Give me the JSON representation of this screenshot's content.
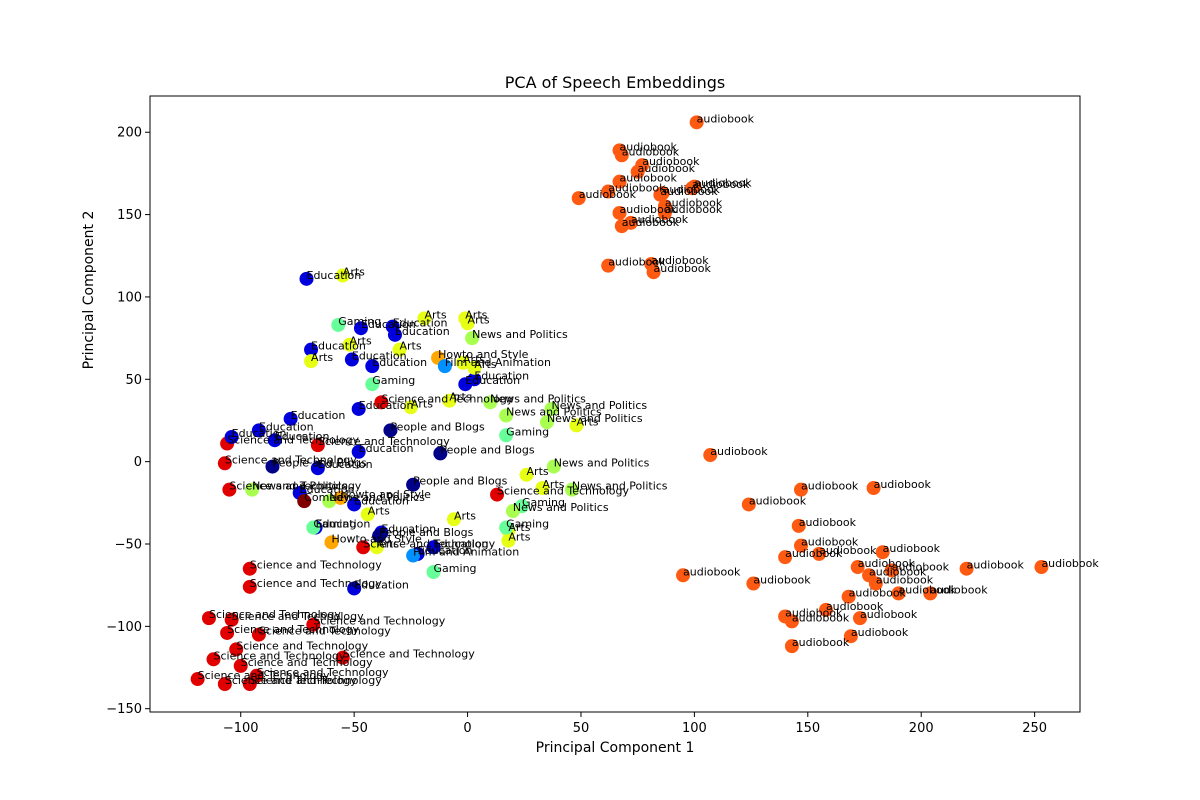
{
  "chart_data": {
    "type": "scatter",
    "title": "PCA of Speech Embeddings",
    "xlabel": "Principal Component 1",
    "ylabel": "Principal Component 2",
    "xlim": [
      -140,
      270
    ],
    "ylim": [
      -152,
      222
    ],
    "xticks": [
      -100,
      -50,
      0,
      50,
      100,
      150,
      200,
      250
    ],
    "yticks": [
      -150,
      -100,
      -50,
      0,
      50,
      100,
      150,
      200
    ],
    "grid": false,
    "legend": "none",
    "category_colors": {
      "audiobook": "#ff5a12",
      "Science and Technology": "#e00000",
      "Education": "#0000dd",
      "Arts": "#e6ff14",
      "Gaming": "#66ff99",
      "News and Politics": "#a8ff50",
      "People and Blogs": "#000088",
      "Howto and Style": "#ffa600",
      "Comedy": "#800000",
      "Film and Animation": "#0090ff"
    },
    "series": [
      {
        "name": "audiobook",
        "points": [
          {
            "x": 101,
            "y": 206,
            "label": "audiobook"
          },
          {
            "x": 67,
            "y": 189,
            "label": "audiobook"
          },
          {
            "x": 68,
            "y": 186,
            "label": "audiobook"
          },
          {
            "x": 77,
            "y": 180,
            "label": "audiobook"
          },
          {
            "x": 75,
            "y": 176,
            "label": "audiobook"
          },
          {
            "x": 67,
            "y": 170,
            "label": "audiobook"
          },
          {
            "x": 62,
            "y": 164,
            "label": "audiobook"
          },
          {
            "x": 99,
            "y": 166,
            "label": "audiobook"
          },
          {
            "x": 100,
            "y": 167,
            "label": "audiobook"
          },
          {
            "x": 85,
            "y": 162,
            "label": "audiobook"
          },
          {
            "x": 86,
            "y": 163,
            "label": "audiobook"
          },
          {
            "x": 49,
            "y": 160,
            "label": "audiobook"
          },
          {
            "x": 87,
            "y": 155,
            "label": "audiobook"
          },
          {
            "x": 67,
            "y": 151,
            "label": "audiobook"
          },
          {
            "x": 87,
            "y": 151,
            "label": "audiobook"
          },
          {
            "x": 72,
            "y": 145,
            "label": "audiobook"
          },
          {
            "x": 68,
            "y": 143,
            "label": "audiobook"
          },
          {
            "x": 81,
            "y": 120,
            "label": "audiobook"
          },
          {
            "x": 62,
            "y": 119,
            "label": "audiobook"
          },
          {
            "x": 82,
            "y": 115,
            "label": "audiobook"
          },
          {
            "x": 107,
            "y": 4,
            "label": "audiobook"
          },
          {
            "x": 147,
            "y": -17,
            "label": "audiobook"
          },
          {
            "x": 179,
            "y": -16,
            "label": "audiobook"
          },
          {
            "x": 124,
            "y": -26,
            "label": "audiobook"
          },
          {
            "x": 146,
            "y": -39,
            "label": "audiobook"
          },
          {
            "x": 147,
            "y": -51,
            "label": "audiobook"
          },
          {
            "x": 155,
            "y": -56,
            "label": "audiobook"
          },
          {
            "x": 140,
            "y": -58,
            "label": "audiobook"
          },
          {
            "x": 172,
            "y": -64,
            "label": "audiobook"
          },
          {
            "x": 183,
            "y": -55,
            "label": "audiobook"
          },
          {
            "x": 220,
            "y": -65,
            "label": "audiobook"
          },
          {
            "x": 253,
            "y": -64,
            "label": "audiobook"
          },
          {
            "x": 95,
            "y": -69,
            "label": "audiobook"
          },
          {
            "x": 126,
            "y": -74,
            "label": "audiobook"
          },
          {
            "x": 177,
            "y": -69,
            "label": "audiobook"
          },
          {
            "x": 187,
            "y": -66,
            "label": "audiobook"
          },
          {
            "x": 180,
            "y": -74,
            "label": "audiobook"
          },
          {
            "x": 168,
            "y": -82,
            "label": "audiobook"
          },
          {
            "x": 190,
            "y": -80,
            "label": "audiobook"
          },
          {
            "x": 204,
            "y": -80,
            "label": "audiobook"
          },
          {
            "x": 158,
            "y": -90,
            "label": "audiobook"
          },
          {
            "x": 173,
            "y": -95,
            "label": "audiobook"
          },
          {
            "x": 140,
            "y": -94,
            "label": "audiobook"
          },
          {
            "x": 143,
            "y": -97,
            "label": "audiobook"
          },
          {
            "x": 169,
            "y": -106,
            "label": "audiobook"
          },
          {
            "x": 143,
            "y": -112,
            "label": "audiobook"
          }
        ]
      },
      {
        "name": "Science and Technology",
        "points": [
          {
            "x": -106,
            "y": 11,
            "label": "Science and Technology"
          },
          {
            "x": -107,
            "y": -1,
            "label": "Science and Technology"
          },
          {
            "x": -105,
            "y": -17,
            "label": "Science and Technology"
          },
          {
            "x": -96,
            "y": -65,
            "label": "Science and Technology"
          },
          {
            "x": -96,
            "y": -76,
            "label": "Science and Technology"
          },
          {
            "x": -114,
            "y": -95,
            "label": "Science and Technology"
          },
          {
            "x": -104,
            "y": -96,
            "label": "Science and Technology"
          },
          {
            "x": -106,
            "y": -104,
            "label": "Science and Technology"
          },
          {
            "x": -92,
            "y": -105,
            "label": "Science and Technology"
          },
          {
            "x": -68,
            "y": -99,
            "label": "Science and Technology"
          },
          {
            "x": -102,
            "y": -114,
            "label": "Science and Technology"
          },
          {
            "x": -112,
            "y": -120,
            "label": "Science and Technology"
          },
          {
            "x": -100,
            "y": -124,
            "label": "Science and Technology"
          },
          {
            "x": -55,
            "y": -119,
            "label": "Science and Technology"
          },
          {
            "x": -93,
            "y": -130,
            "label": "Science and Technology"
          },
          {
            "x": -119,
            "y": -132,
            "label": "Science and Technology"
          },
          {
            "x": -107,
            "y": -135,
            "label": "Science and Technology"
          },
          {
            "x": -96,
            "y": -135,
            "label": "Science and Technology"
          },
          {
            "x": -38,
            "y": 36,
            "label": "Science and Technology"
          },
          {
            "x": -66,
            "y": 10,
            "label": "Science and Technology"
          },
          {
            "x": -46,
            "y": -52,
            "label": "Science and Technology"
          },
          {
            "x": 13,
            "y": -20,
            "label": "Science and Technology"
          }
        ]
      },
      {
        "name": "Education",
        "points": [
          {
            "x": -71,
            "y": 111,
            "label": "Education"
          },
          {
            "x": -47,
            "y": 81,
            "label": "Education"
          },
          {
            "x": -33,
            "y": 82,
            "label": "Education"
          },
          {
            "x": -32,
            "y": 77,
            "label": "Education"
          },
          {
            "x": -69,
            "y": 68,
            "label": "Education"
          },
          {
            "x": -51,
            "y": 62,
            "label": "Education"
          },
          {
            "x": -42,
            "y": 58,
            "label": "Education"
          },
          {
            "x": -1,
            "y": 47,
            "label": "Education"
          },
          {
            "x": 3,
            "y": 50,
            "label": "Education"
          },
          {
            "x": -48,
            "y": 32,
            "label": "Education"
          },
          {
            "x": -78,
            "y": 26,
            "label": "Education"
          },
          {
            "x": -104,
            "y": 15,
            "label": "Education"
          },
          {
            "x": -92,
            "y": 19,
            "label": "Education"
          },
          {
            "x": -85,
            "y": 13,
            "label": "Education"
          },
          {
            "x": -66,
            "y": -4,
            "label": "Education"
          },
          {
            "x": -74,
            "y": -19,
            "label": "Education"
          },
          {
            "x": -48,
            "y": 6,
            "label": "Education"
          },
          {
            "x": -67,
            "y": -40,
            "label": "Education"
          },
          {
            "x": -50,
            "y": -26,
            "label": "Education"
          },
          {
            "x": -38,
            "y": -43,
            "label": "Education"
          },
          {
            "x": -15,
            "y": -52,
            "label": "Education"
          },
          {
            "x": -22,
            "y": -56,
            "label": "Education"
          },
          {
            "x": -50,
            "y": -77,
            "label": "Education"
          }
        ]
      },
      {
        "name": "Arts",
        "points": [
          {
            "x": -55,
            "y": 113,
            "label": "Arts"
          },
          {
            "x": -19,
            "y": 87,
            "label": "Arts"
          },
          {
            "x": -1,
            "y": 87,
            "label": "Arts"
          },
          {
            "x": 0,
            "y": 84,
            "label": "Arts"
          },
          {
            "x": -52,
            "y": 71,
            "label": "Arts"
          },
          {
            "x": -69,
            "y": 61,
            "label": "Arts"
          },
          {
            "x": -30,
            "y": 68,
            "label": "Arts"
          },
          {
            "x": 3,
            "y": 57,
            "label": "Arts"
          },
          {
            "x": -2,
            "y": 60,
            "label": "Arts"
          },
          {
            "x": -8,
            "y": 37,
            "label": "Arts"
          },
          {
            "x": 48,
            "y": 22,
            "label": "Arts"
          },
          {
            "x": 26,
            "y": -8,
            "label": "Arts"
          },
          {
            "x": 33,
            "y": -16,
            "label": "Arts"
          },
          {
            "x": -44,
            "y": -32,
            "label": "Arts"
          },
          {
            "x": 18,
            "y": -42,
            "label": "Arts"
          },
          {
            "x": 18,
            "y": -48,
            "label": "Arts"
          },
          {
            "x": -6,
            "y": -35,
            "label": "Arts"
          },
          {
            "x": -40,
            "y": -52,
            "label": "Arts"
          },
          {
            "x": -25,
            "y": 33,
            "label": "Arts"
          }
        ]
      },
      {
        "name": "Gaming",
        "points": [
          {
            "x": -57,
            "y": 83,
            "label": "Gaming"
          },
          {
            "x": -42,
            "y": 47,
            "label": "Gaming"
          },
          {
            "x": 17,
            "y": 16,
            "label": "Gaming"
          },
          {
            "x": 24,
            "y": -27,
            "label": "Gaming"
          },
          {
            "x": 17,
            "y": -40,
            "label": "Gaming"
          },
          {
            "x": -15,
            "y": -67,
            "label": "Gaming"
          },
          {
            "x": -68,
            "y": -40,
            "label": "Gaming"
          }
        ]
      },
      {
        "name": "News and Politics",
        "points": [
          {
            "x": 2,
            "y": 75,
            "label": "News and Politics"
          },
          {
            "x": 10,
            "y": 36,
            "label": "News and Politics"
          },
          {
            "x": 37,
            "y": 32,
            "label": "News and Politics"
          },
          {
            "x": 17,
            "y": 28,
            "label": "News and Politics"
          },
          {
            "x": 35,
            "y": 24,
            "label": "News and Politics"
          },
          {
            "x": 38,
            "y": -3,
            "label": "News and Politics"
          },
          {
            "x": 46,
            "y": -17,
            "label": "News and Politics"
          },
          {
            "x": 20,
            "y": -30,
            "label": "News and Politics"
          },
          {
            "x": -95,
            "y": -17,
            "label": "News and Politics"
          },
          {
            "x": -61,
            "y": -24,
            "label": "News and Politics"
          }
        ]
      },
      {
        "name": "People and Blogs",
        "points": [
          {
            "x": -86,
            "y": -3,
            "label": "People and Blogs"
          },
          {
            "x": -39,
            "y": -45,
            "label": "People and Blogs"
          },
          {
            "x": -24,
            "y": -14,
            "label": "People and Blogs"
          },
          {
            "x": -34,
            "y": 19,
            "label": "People and Blogs"
          },
          {
            "x": -12,
            "y": 5,
            "label": "People and Blogs"
          }
        ]
      },
      {
        "name": "Howto and Style",
        "points": [
          {
            "x": -60,
            "y": -49,
            "label": "Howto and Style"
          },
          {
            "x": -13,
            "y": 63,
            "label": "Howto and Style"
          },
          {
            "x": -56,
            "y": -22,
            "label": "Howto and Style"
          }
        ]
      },
      {
        "name": "Comedy",
        "points": [
          {
            "x": -72,
            "y": -24,
            "label": "Comedy"
          }
        ]
      },
      {
        "name": "Film and Animation",
        "points": [
          {
            "x": -24,
            "y": -57,
            "label": "Film and Animation"
          },
          {
            "x": -10,
            "y": 58,
            "label": "Film and Animation"
          }
        ]
      }
    ]
  }
}
